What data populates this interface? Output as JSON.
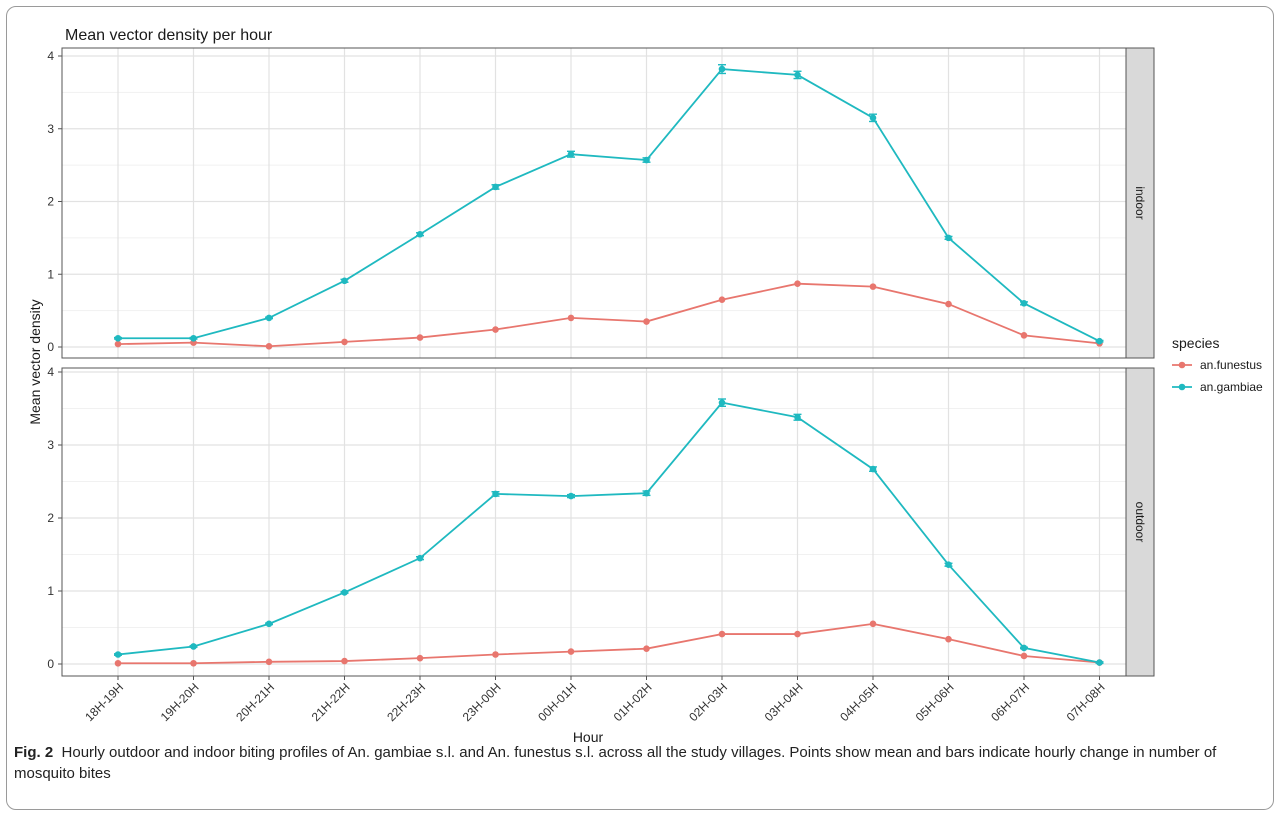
{
  "chart_data": {
    "type": "line",
    "title": "Mean vector density per hour",
    "xlabel": "Hour",
    "ylabel": "Mean vector density",
    "grid": true,
    "legend_position": "right",
    "legend_title": "species",
    "categories": [
      "18H-19H",
      "19H-20H",
      "20H-21H",
      "21H-22H",
      "22H-23H",
      "23H-00H",
      "00H-01H",
      "01H-02H",
      "02H-03H",
      "03H-04H",
      "04H-05H",
      "05H-06H",
      "06H-07H",
      "07H-08H"
    ],
    "ylim": [
      0,
      4
    ],
    "yticks": [
      0,
      1,
      2,
      3,
      4
    ],
    "colors": {
      "an.funestus": "#e8766e",
      "an.gambiae": "#1fb9c0"
    },
    "panels": [
      {
        "label": "indoor",
        "series": [
          {
            "name": "an.funestus",
            "values": [
              0.04,
              0.06,
              0.01,
              0.07,
              0.13,
              0.24,
              0.4,
              0.35,
              0.65,
              0.87,
              0.83,
              0.59,
              0.16,
              0.05
            ]
          },
          {
            "name": "an.gambiae",
            "values": [
              0.12,
              0.12,
              0.4,
              0.91,
              1.55,
              2.2,
              2.65,
              2.57,
              3.82,
              3.74,
              3.15,
              1.5,
              0.6,
              0.08
            ],
            "errors": [
              0.01,
              0.01,
              0.01,
              0.02,
              0.02,
              0.03,
              0.04,
              0.03,
              0.06,
              0.05,
              0.05,
              0.02,
              0.02,
              0.01
            ]
          }
        ]
      },
      {
        "label": "outdoor",
        "series": [
          {
            "name": "an.funestus",
            "values": [
              0.01,
              0.01,
              0.03,
              0.04,
              0.08,
              0.13,
              0.17,
              0.21,
              0.41,
              0.41,
              0.55,
              0.34,
              0.11,
              0.02
            ]
          },
          {
            "name": "an.gambiae",
            "values": [
              0.13,
              0.24,
              0.55,
              0.98,
              1.45,
              2.33,
              2.3,
              2.34,
              3.58,
              3.38,
              2.67,
              1.36,
              0.22,
              0.02
            ],
            "errors": [
              0.01,
              0.01,
              0.01,
              0.01,
              0.02,
              0.03,
              0.02,
              0.03,
              0.05,
              0.04,
              0.03,
              0.02,
              0.01,
              0.01
            ]
          }
        ]
      }
    ]
  },
  "caption": {
    "label": "Fig. 2",
    "text": "Hourly outdoor and indoor biting profiles of An. gambiae s.l. and An. funestus s.l. across all the study villages. Points show mean and bars indicate hourly change in number of mosquito bites"
  }
}
